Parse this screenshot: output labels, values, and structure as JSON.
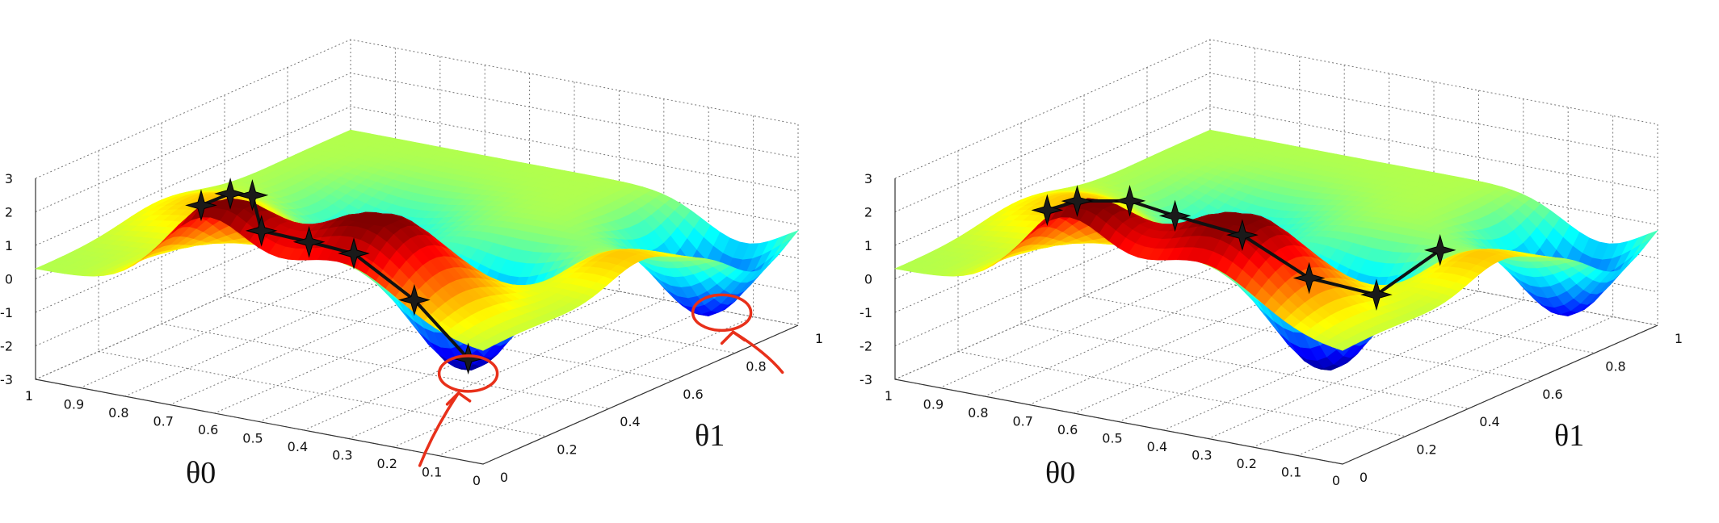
{
  "chart_data": [
    {
      "type": "surface",
      "view": "3d-isometric",
      "grid": true,
      "xlabel": "θ0",
      "ylabel": "θ1",
      "zlim": [
        -3,
        3
      ],
      "z_ticks": [
        "3",
        "2",
        "1",
        "0",
        "-1",
        "-2",
        "-3"
      ],
      "theta0_ticks": [
        "1",
        "0.9",
        "0.8",
        "0.7",
        "0.6",
        "0.5",
        "0.4",
        "0.3",
        "0.2",
        "0.1",
        "0"
      ],
      "theta1_ticks": [
        "0",
        "0.2",
        "0.4",
        "0.6",
        "0.8",
        "1"
      ],
      "colormap": "jet",
      "descent_path": [
        [
          0.63,
          0.0
        ],
        [
          0.6,
          0.05
        ],
        [
          0.6,
          0.12
        ],
        [
          0.65,
          0.22
        ],
        [
          0.6,
          0.3
        ],
        [
          0.5,
          0.3
        ],
        [
          0.4,
          0.35
        ],
        [
          0.35,
          0.45
        ]
      ],
      "annotations": {
        "highlighted_minima": [
          [
            0.35,
            0.45
          ],
          [
            0.1,
            0.9
          ]
        ],
        "color": "#e8301a"
      }
    },
    {
      "type": "surface",
      "view": "3d-isometric",
      "grid": true,
      "xlabel": "θ0",
      "ylabel": "θ1",
      "zlim": [
        -3,
        3
      ],
      "z_ticks": [
        "3",
        "2",
        "1",
        "0",
        "-1",
        "-2",
        "-3"
      ],
      "theta0_ticks": [
        "1",
        "0.9",
        "0.8",
        "0.7",
        "0.6",
        "0.5",
        "0.4",
        "0.3",
        "0.2",
        "0.1",
        "0"
      ],
      "theta1_ticks": [
        "0",
        "0.2",
        "0.4",
        "0.6",
        "0.8",
        "1"
      ],
      "colormap": "jet",
      "descent_path": [
        [
          0.66,
          0.0
        ],
        [
          0.6,
          0.01
        ],
        [
          0.56,
          0.12
        ],
        [
          0.48,
          0.15
        ],
        [
          0.4,
          0.25
        ],
        [
          0.3,
          0.32
        ],
        [
          0.22,
          0.42
        ],
        [
          0.12,
          0.48
        ]
      ]
    }
  ]
}
